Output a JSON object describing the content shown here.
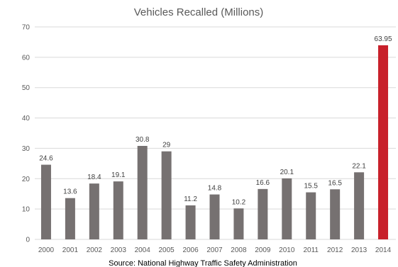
{
  "chart_data": {
    "type": "bar",
    "title": "Vehicles Recalled (Millions)",
    "xlabel": "",
    "ylabel": "",
    "ylim": [
      0,
      70
    ],
    "yticks": [
      "0",
      "10",
      "20",
      "30",
      "40",
      "50",
      "60",
      "70"
    ],
    "grid": true,
    "legend": "none",
    "categories": [
      "2000",
      "2001",
      "2002",
      "2003",
      "2004",
      "2005",
      "2006",
      "2007",
      "2008",
      "2009",
      "2010",
      "2011",
      "2012",
      "2013",
      "2014"
    ],
    "values": [
      24.6,
      13.6,
      18.4,
      19.1,
      30.8,
      29,
      11.2,
      14.8,
      10.2,
      16.6,
      20.1,
      15.5,
      16.5,
      22.1,
      63.95
    ],
    "data_labels": [
      "24.6",
      "13.6",
      "18.4",
      "19.1",
      "30.8",
      "29",
      "11.2",
      "14.8",
      "10.2",
      "16.6",
      "20.1",
      "15.5",
      "16.5",
      "22.1",
      "63.95"
    ],
    "colors": {
      "default": "#767171",
      "highlight": "#c8202a",
      "highlight_category": "2014"
    },
    "source": "Source: National Highway Traffic Safety Administration"
  }
}
